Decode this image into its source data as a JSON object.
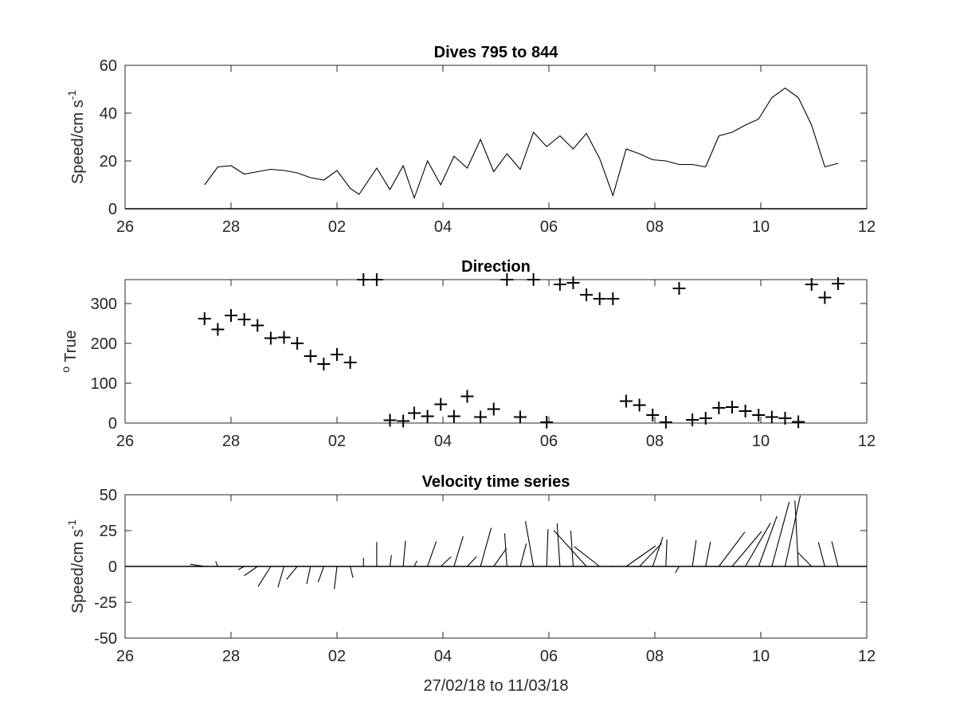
{
  "xaxis": {
    "range": [
      "2018-02-26",
      "2018-03-12"
    ],
    "ticks": [
      {
        "date": "2018-02-26",
        "label": "26"
      },
      {
        "date": "2018-02-28",
        "label": "28"
      },
      {
        "date": "2018-03-02",
        "label": "02"
      },
      {
        "date": "2018-03-04",
        "label": "04"
      },
      {
        "date": "2018-03-06",
        "label": "06"
      },
      {
        "date": "2018-03-08",
        "label": "08"
      },
      {
        "date": "2018-03-10",
        "label": "10"
      },
      {
        "date": "2018-03-12",
        "label": "12"
      }
    ]
  },
  "chart_data": [
    {
      "type": "line",
      "title": "Dives 795 to 844",
      "ylabel": "Speed/cm s",
      "ylabel_superscript": "-1",
      "xlabel": "",
      "ylim": [
        0,
        60
      ],
      "yticks": [
        0,
        20,
        40,
        60
      ],
      "grid": false,
      "x": [
        "2018-02-27 12:00",
        "2018-02-27 18:00",
        "2018-02-28 00:00",
        "2018-02-28 06:00",
        "2018-02-28 12:00",
        "2018-02-28 18:00",
        "2018-03-01 00:00",
        "2018-03-01 06:00",
        "2018-03-01 12:00",
        "2018-03-01 18:00",
        "2018-03-02 00:00",
        "2018-03-02 06:00",
        "2018-03-02 10:00",
        "2018-03-02 18:00",
        "2018-03-03 00:00",
        "2018-03-03 06:00",
        "2018-03-03 11:00",
        "2018-03-03 17:00",
        "2018-03-03 23:00",
        "2018-03-04 05:00",
        "2018-03-04 11:00",
        "2018-03-04 17:00",
        "2018-03-04 23:00",
        "2018-03-05 05:00",
        "2018-03-05 11:00",
        "2018-03-05 17:00",
        "2018-03-05 23:00",
        "2018-03-06 05:00",
        "2018-03-06 11:00",
        "2018-03-06 17:00",
        "2018-03-06 23:00",
        "2018-03-07 05:00",
        "2018-03-07 11:00",
        "2018-03-07 17:00",
        "2018-03-07 23:00",
        "2018-03-08 05:00",
        "2018-03-08 11:00",
        "2018-03-08 17:00",
        "2018-03-08 23:00",
        "2018-03-09 05:00",
        "2018-03-09 11:00",
        "2018-03-09 17:00",
        "2018-03-09 23:00",
        "2018-03-10 05:00",
        "2018-03-10 11:00",
        "2018-03-10 17:00",
        "2018-03-10 23:00",
        "2018-03-11 05:00",
        "2018-03-11 11:00"
      ],
      "series": [
        {
          "values": [
            10,
            17.5,
            18,
            14.5,
            15.5,
            16.5,
            16,
            15,
            13,
            12,
            16,
            8.5,
            6,
            17,
            8,
            18,
            4.5,
            20,
            10,
            22,
            17,
            29,
            15.5,
            23,
            16.5,
            32,
            26,
            30.5,
            25,
            31.5,
            21,
            5.5,
            25,
            23,
            20.5,
            20,
            18.5,
            18.5,
            17.5,
            30.5,
            32,
            35,
            37.5,
            46.5,
            50.5,
            46.5,
            35,
            17.5,
            19
          ]
        }
      ]
    },
    {
      "type": "scatter",
      "title": "Direction",
      "ylabel": "True",
      "ylabel_prefix": "o",
      "xlabel": "",
      "ylim": [
        0,
        360
      ],
      "yticks": [
        0,
        100,
        200,
        300
      ],
      "grid": false,
      "x": [
        "2018-02-27 12:00",
        "2018-02-27 18:00",
        "2018-02-28 00:00",
        "2018-02-28 06:00",
        "2018-02-28 12:00",
        "2018-02-28 18:00",
        "2018-03-01 00:00",
        "2018-03-01 06:00",
        "2018-03-01 12:00",
        "2018-03-01 18:00",
        "2018-03-02 00:00",
        "2018-03-02 06:00",
        "2018-03-02 12:00",
        "2018-03-02 18:00",
        "2018-03-03 00:00",
        "2018-03-03 06:00",
        "2018-03-03 11:00",
        "2018-03-03 17:00",
        "2018-03-03 23:00",
        "2018-03-04 05:00",
        "2018-03-04 11:00",
        "2018-03-04 17:00",
        "2018-03-04 23:00",
        "2018-03-05 05:00",
        "2018-03-05 11:00",
        "2018-03-05 17:00",
        "2018-03-05 23:00",
        "2018-03-06 05:00",
        "2018-03-06 11:00",
        "2018-03-06 17:00",
        "2018-03-06 23:00",
        "2018-03-07 05:00",
        "2018-03-07 11:00",
        "2018-03-07 17:00",
        "2018-03-07 23:00",
        "2018-03-08 05:00",
        "2018-03-08 11:00",
        "2018-03-08 17:00",
        "2018-03-08 23:00",
        "2018-03-09 05:00",
        "2018-03-09 11:00",
        "2018-03-09 17:00",
        "2018-03-09 23:00",
        "2018-03-10 05:00",
        "2018-03-10 11:00",
        "2018-03-10 17:00",
        "2018-03-10 23:00",
        "2018-03-11 05:00",
        "2018-03-11 11:00"
      ],
      "series": [
        {
          "values": [
            262,
            235,
            270,
            260,
            245,
            213,
            215,
            200,
            168,
            148,
            172,
            152,
            360,
            360,
            7,
            5,
            25,
            17,
            47,
            17,
            67,
            15,
            35,
            360,
            15,
            360,
            2,
            348,
            352,
            322,
            312,
            312,
            55,
            45,
            20,
            2,
            338,
            8,
            12,
            38,
            40,
            30,
            20,
            15,
            12,
            3,
            348,
            315,
            350
          ]
        }
      ]
    },
    {
      "type": "stick",
      "title": "Velocity time series",
      "ylabel": "Speed/cm s",
      "ylabel_superscript": "-1",
      "xlabel": "27/02/18 to 11/03/18",
      "ylim": [
        -50,
        50
      ],
      "yticks": [
        -50,
        -25,
        0,
        25,
        50
      ],
      "grid": false,
      "x": [
        "2018-02-27 12:00",
        "2018-02-27 18:00",
        "2018-02-28 00:00",
        "2018-02-28 06:00",
        "2018-02-28 12:00",
        "2018-02-28 18:00",
        "2018-03-01 00:00",
        "2018-03-01 06:00",
        "2018-03-01 12:00",
        "2018-03-01 18:00",
        "2018-03-02 00:00",
        "2018-03-02 06:00",
        "2018-03-02 12:00",
        "2018-03-02 18:00",
        "2018-03-03 00:00",
        "2018-03-03 06:00",
        "2018-03-03 11:00",
        "2018-03-03 17:00",
        "2018-03-03 23:00",
        "2018-03-04 05:00",
        "2018-03-04 11:00",
        "2018-03-04 17:00",
        "2018-03-04 23:00",
        "2018-03-05 05:00",
        "2018-03-05 11:00",
        "2018-03-05 17:00",
        "2018-03-05 23:00",
        "2018-03-06 05:00",
        "2018-03-06 11:00",
        "2018-03-06 17:00",
        "2018-03-06 23:00",
        "2018-03-07 05:00",
        "2018-03-07 11:00",
        "2018-03-07 17:00",
        "2018-03-07 23:00",
        "2018-03-08 05:00",
        "2018-03-08 11:00",
        "2018-03-08 17:00",
        "2018-03-08 23:00",
        "2018-03-09 05:00",
        "2018-03-09 11:00",
        "2018-03-09 17:00",
        "2018-03-09 23:00",
        "2018-03-10 05:00",
        "2018-03-10 11:00",
        "2018-03-10 17:00",
        "2018-03-10 23:00",
        "2018-03-11 05:00",
        "2018-03-11 11:00"
      ],
      "u_east": [
        -9.9,
        -1.5,
        -6.5,
        -4.3,
        -9.3,
        -8.8,
        -4.2,
        -7.5,
        -2.6,
        -3.9,
        -1.9,
        1.9,
        0,
        0,
        1,
        1.6,
        1.9,
        6.1,
        7.3,
        6.4,
        6.5,
        7.5,
        8.9,
        -1.6,
        4.3,
        -5.6,
        0.9,
        -2,
        -1.7,
        -22.8,
        -17.7,
        -1.5,
        20.5,
        15.6,
        7.1,
        0.7,
        -2.7,
        2.6,
        3.4,
        18.1,
        20.6,
        17.5,
        12.8,
        12.1,
        10.6,
        -2.4,
        -9.4,
        -4.5,
        -4.4
      ],
      "v_north": [
        1.5,
        3.5,
        0,
        -2.3,
        -6.5,
        -13.9,
        -14.5,
        -9.1,
        -12.1,
        -11,
        -15.9,
        -7.9,
        6,
        17,
        7.9,
        17.9,
        4,
        17.4,
        6.8,
        21,
        6.8,
        26.9,
        12.6,
        23,
        16,
        31.5,
        26,
        30,
        24.9,
        25.2,
        13.8,
        -0.1,
        14.3,
        16.1,
        20.5,
        18.8,
        -4.5,
        18.3,
        17.2,
        24,
        24.5,
        30.3,
        35.1,
        45,
        49.4,
        46,
        9.6,
        16.9,
        17.5
      ]
    }
  ]
}
